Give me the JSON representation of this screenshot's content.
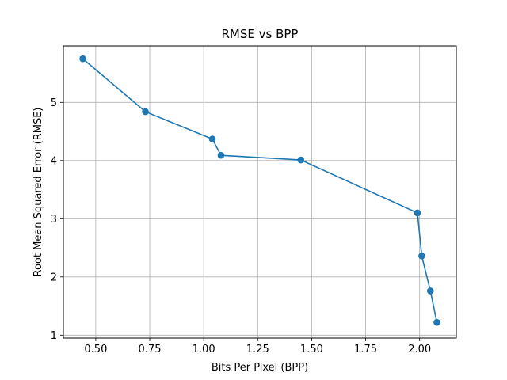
{
  "chart_data": {
    "type": "line",
    "title": "RMSE vs BPP",
    "xlabel": "Bits Per Pixel (BPP)",
    "ylabel": "Root Mean Squared Error (RMSE)",
    "xlim": [
      0.35,
      2.17
    ],
    "ylim": [
      0.95,
      5.97
    ],
    "xticks": [
      0.5,
      0.75,
      1.0,
      1.25,
      1.5,
      1.75,
      2.0
    ],
    "xtick_labels": [
      "0.50",
      "0.75",
      "1.00",
      "1.25",
      "1.50",
      "1.75",
      "2.00"
    ],
    "yticks": [
      1,
      2,
      3,
      4,
      5
    ],
    "ytick_labels": [
      "1",
      "2",
      "3",
      "4",
      "5"
    ],
    "grid": true,
    "line_color": "#1f77b4",
    "series": [
      {
        "x": [
          0.44,
          0.73,
          1.04,
          1.08,
          1.45,
          1.99,
          2.01,
          2.05,
          2.08
        ],
        "y": [
          5.75,
          4.84,
          4.37,
          4.09,
          4.01,
          3.1,
          2.36,
          1.76,
          1.22
        ]
      }
    ]
  }
}
